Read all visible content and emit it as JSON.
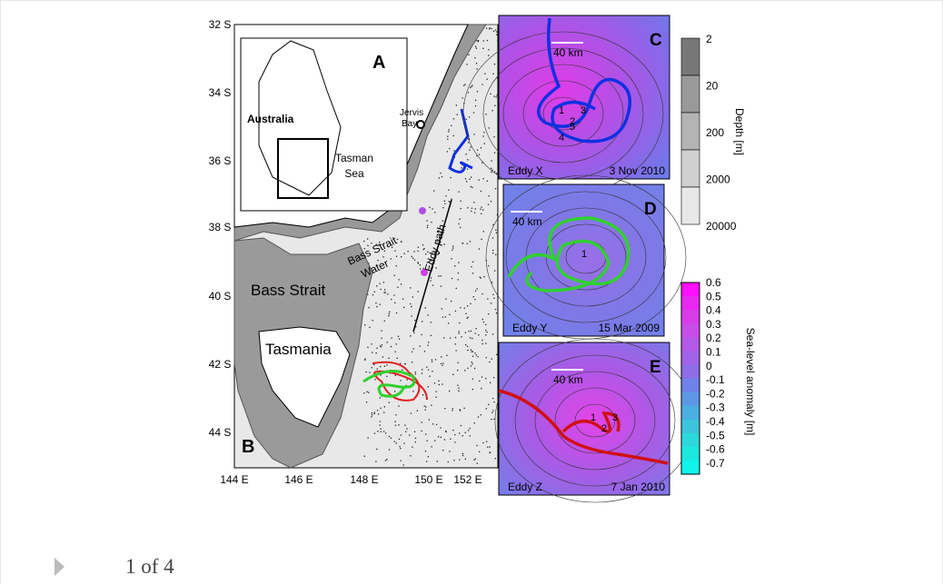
{
  "figure": {
    "map": {
      "lat_labels": [
        "32 S",
        "34 S",
        "36 S",
        "38 S",
        "40 S",
        "42 S",
        "44 S"
      ],
      "lon_labels": [
        "144 E",
        "146 E",
        "148 E",
        "150 E",
        "152 E"
      ],
      "panel": "B",
      "inset": {
        "panel": "A",
        "australia": "Australia",
        "tasman": [
          "Tasman",
          "Sea"
        ]
      },
      "jervis": [
        "Jervis",
        "Bay"
      ],
      "bass_strait": "Bass Strait",
      "bass_strait_water": [
        "Bass Strait",
        "Water"
      ],
      "eddy_path": "Eddy path",
      "tasmania": "Tasmania"
    },
    "panels": [
      {
        "panel": "C",
        "scale": "40 km",
        "eddy": "Eddy X",
        "date": "3 Nov 2010",
        "marks": [
          "1",
          "2",
          "3",
          "4",
          "5"
        ]
      },
      {
        "panel": "D",
        "scale": "40 km",
        "eddy": "Eddy Y",
        "date": "15 Mar 2009",
        "marks": [
          "1"
        ]
      },
      {
        "panel": "E",
        "scale": "40 km",
        "eddy": "Eddy Z",
        "date": "7 Jan 2010",
        "marks": [
          "1",
          "2",
          "3"
        ]
      }
    ],
    "depth_bar": {
      "ticks": [
        "2",
        "20",
        "200",
        "2000",
        "20000"
      ],
      "label": "Depth [m]"
    },
    "sla_bar": {
      "ticks": [
        "0.6",
        "0.5",
        "0.4",
        "0.3",
        "0.2",
        "0.1",
        "0",
        "-0.1",
        "-0.2",
        "-0.3",
        "-0.4",
        "-0.5",
        "-0.6",
        "-0.7"
      ],
      "label": "Sea-level anomaly [m]"
    }
  },
  "pager": "1 of 4"
}
